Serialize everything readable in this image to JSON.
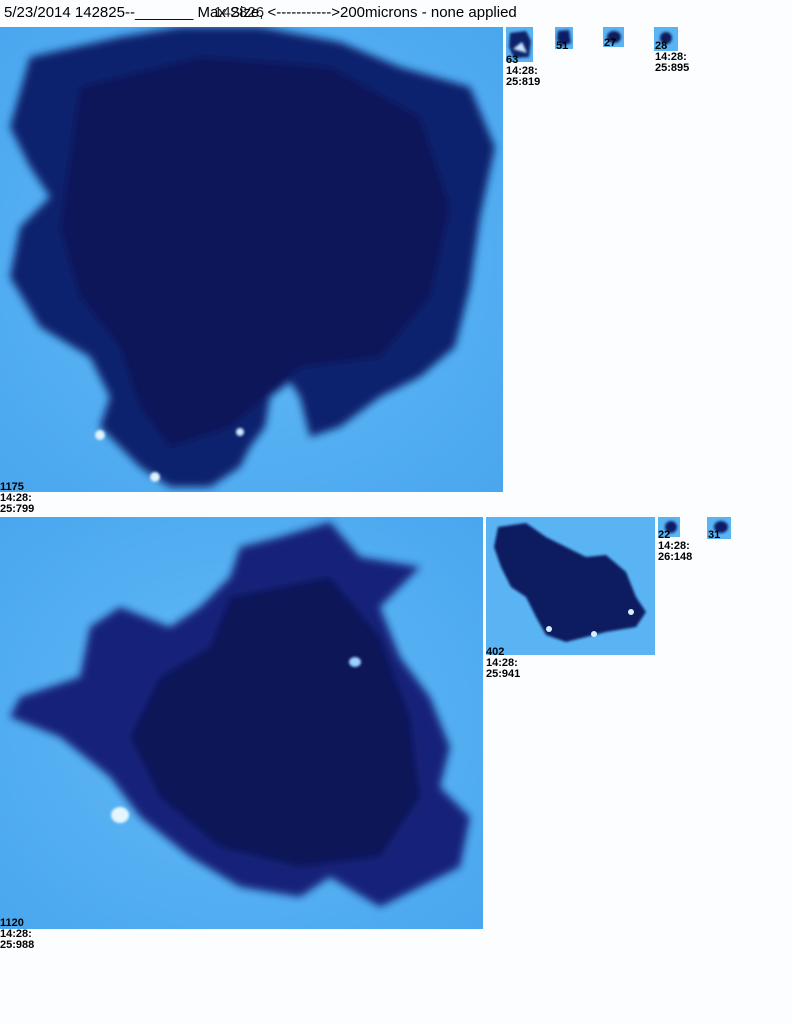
{
  "header": {
    "title": "5/23/2014 142825--_______ Max Size, <----------->200microns - none applied",
    "overlay": "142826"
  },
  "colors": {
    "background": "#5ab4f4",
    "particle_dark": "#0d1a62",
    "particle_mid": "#1c3aa6"
  },
  "particles": [
    {
      "id": "1175",
      "lines": [
        "1175",
        "14:28:",
        "25:799"
      ]
    },
    {
      "id": "63",
      "lines": [
        "63",
        "14:28:",
        "25:819"
      ]
    },
    {
      "id": "51",
      "lines": [
        "51"
      ]
    },
    {
      "id": "27",
      "lines": [
        "27"
      ]
    },
    {
      "id": "28",
      "lines": [
        "28",
        "14:28:",
        "25:895"
      ]
    },
    {
      "id": "1120",
      "lines": [
        "1120",
        "14:28:",
        "25:988"
      ]
    },
    {
      "id": "402",
      "lines": [
        "402",
        "14:28:",
        "25:941"
      ]
    },
    {
      "id": "22",
      "lines": [
        "22",
        "14:28:",
        "26:148"
      ]
    },
    {
      "id": "31",
      "lines": [
        "31"
      ]
    }
  ]
}
